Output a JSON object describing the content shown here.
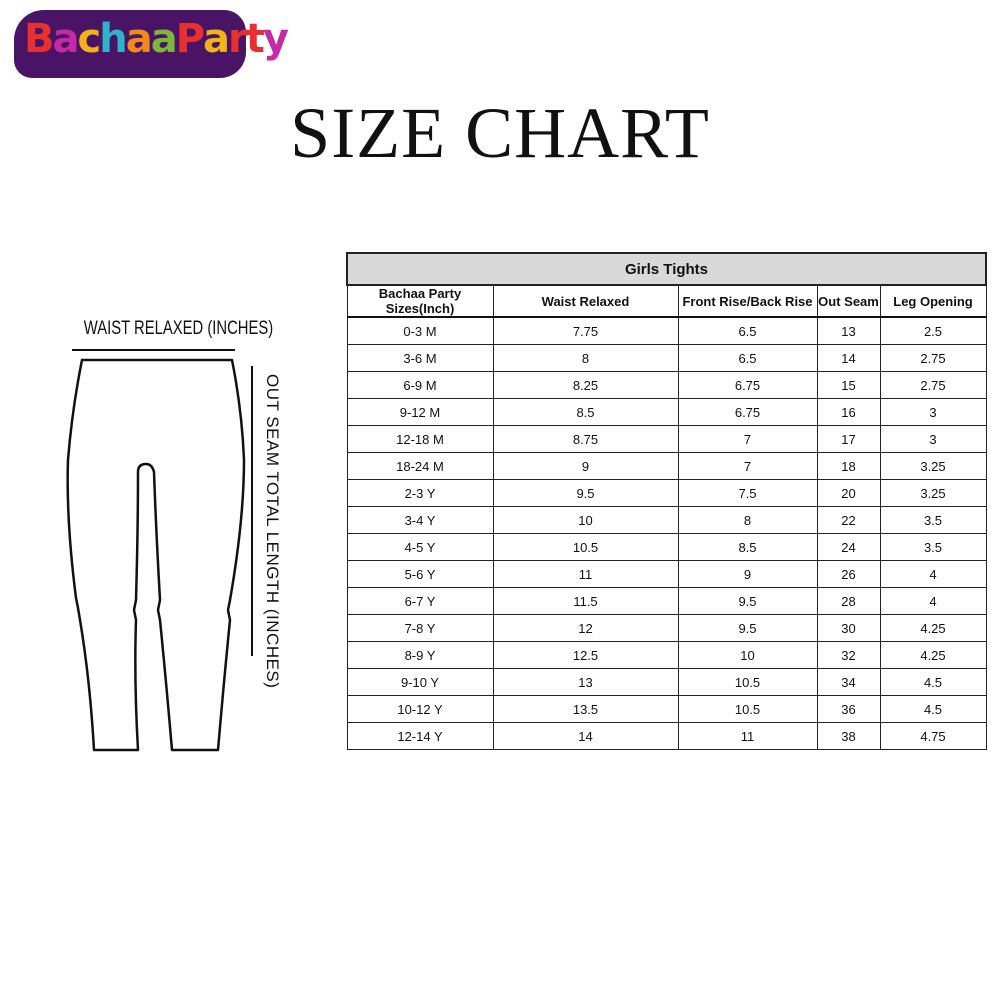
{
  "brand": {
    "logo_text": "BachaaParty",
    "logo_colors": [
      "#e8312f",
      "#c42aa6",
      "#f2b318",
      "#2fb3c8",
      "#f08a1c",
      "#7ab83a",
      "#e8312f",
      "#f2b318",
      "#e8312f"
    ]
  },
  "title": "SIZE CHART",
  "diagram": {
    "waist_label": "WAIST RELAXED (INCHES)",
    "seam_label": "OUT SEAM TOTAL LENGTH (INCHES)"
  },
  "table": {
    "caption": "Girls Tights",
    "columns": [
      "Bachaa Party Sizes(Inch)",
      "Waist Relaxed",
      "Front Rise/Back Rise",
      "Out Seam",
      "Leg Opening"
    ],
    "rows": [
      [
        "0-3 M",
        "7.75",
        "6.5",
        "13",
        "2.5"
      ],
      [
        "3-6 M",
        "8",
        "6.5",
        "14",
        "2.75"
      ],
      [
        "6-9 M",
        "8.25",
        "6.75",
        "15",
        "2.75"
      ],
      [
        "9-12 M",
        "8.5",
        "6.75",
        "16",
        "3"
      ],
      [
        "12-18 M",
        "8.75",
        "7",
        "17",
        "3"
      ],
      [
        "18-24 M",
        "9",
        "7",
        "18",
        "3.25"
      ],
      [
        "2-3 Y",
        "9.5",
        "7.5",
        "20",
        "3.25"
      ],
      [
        "3-4 Y",
        "10",
        "8",
        "22",
        "3.5"
      ],
      [
        "4-5 Y",
        "10.5",
        "8.5",
        "24",
        "3.5"
      ],
      [
        "5-6 Y",
        "11",
        "9",
        "26",
        "4"
      ],
      [
        "6-7 Y",
        "11.5",
        "9.5",
        "28",
        "4"
      ],
      [
        "7-8 Y",
        "12",
        "9.5",
        "30",
        "4.25"
      ],
      [
        "8-9 Y",
        "12.5",
        "10",
        "32",
        "4.25"
      ],
      [
        "9-10 Y",
        "13",
        "10.5",
        "34",
        "4.5"
      ],
      [
        "10-12 Y",
        "13.5",
        "10.5",
        "36",
        "4.5"
      ],
      [
        "12-14 Y",
        "14",
        "11",
        "38",
        "4.75"
      ]
    ]
  }
}
